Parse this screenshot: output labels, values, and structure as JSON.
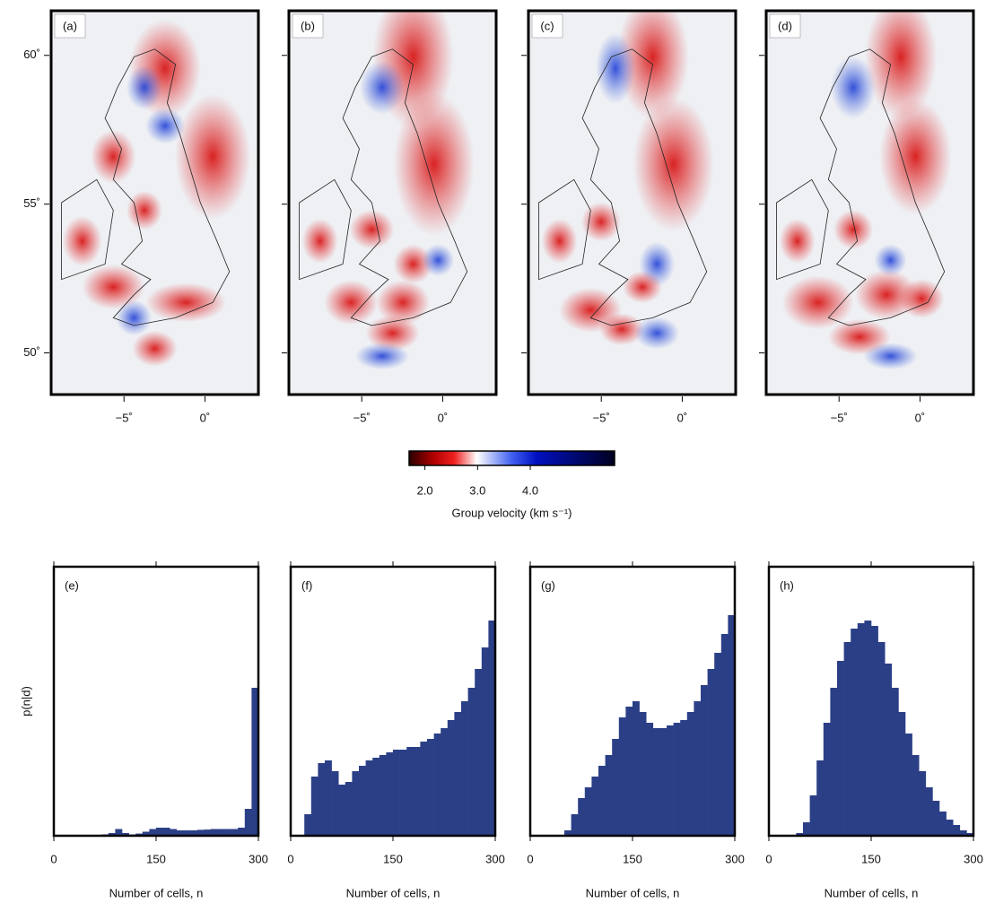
{
  "chart_data": [
    {
      "type": "map",
      "panel_label": "(a)",
      "xlim": [
        -9.5,
        3.3
      ],
      "ylim": [
        48.6,
        61.5
      ],
      "xticks": [
        {
          "value": -5,
          "label": "−5˚"
        },
        {
          "value": 0,
          "label": "0˚"
        }
      ],
      "yticks": [
        {
          "value": 50,
          "label": "50˚"
        },
        {
          "value": 55,
          "label": "55˚"
        },
        {
          "value": 60,
          "label": "60˚"
        }
      ],
      "show_ytick_labels": true
    },
    {
      "type": "map",
      "panel_label": "(b)",
      "xlim": [
        -9.5,
        3.3
      ],
      "ylim": [
        48.6,
        61.5
      ],
      "xticks": [
        {
          "value": -5,
          "label": "−5˚"
        },
        {
          "value": 0,
          "label": "0˚"
        }
      ],
      "yticks": [
        {
          "value": 50,
          "label": "50˚"
        },
        {
          "value": 55,
          "label": "55˚"
        },
        {
          "value": 60,
          "label": "60˚"
        }
      ],
      "show_ytick_labels": false
    },
    {
      "type": "map",
      "panel_label": "(c)",
      "xlim": [
        -9.5,
        3.3
      ],
      "ylim": [
        48.6,
        61.5
      ],
      "xticks": [
        {
          "value": -5,
          "label": "−5˚"
        },
        {
          "value": 0,
          "label": "0˚"
        }
      ],
      "yticks": [
        {
          "value": 50,
          "label": "50˚"
        },
        {
          "value": 55,
          "label": "55˚"
        },
        {
          "value": 60,
          "label": "60˚"
        }
      ],
      "show_ytick_labels": false
    },
    {
      "type": "map",
      "panel_label": "(d)",
      "xlim": [
        -9.5,
        3.3
      ],
      "ylim": [
        48.6,
        61.5
      ],
      "xticks": [
        {
          "value": -5,
          "label": "−5˚"
        },
        {
          "value": 0,
          "label": "0˚"
        }
      ],
      "yticks": [
        {
          "value": 50,
          "label": "50˚"
        },
        {
          "value": 55,
          "label": "55˚"
        },
        {
          "value": 60,
          "label": "60˚"
        }
      ],
      "show_ytick_labels": false
    },
    {
      "type": "colorbar",
      "label": "Group velocity (km s⁻¹)",
      "lim": [
        1.7,
        5.6
      ],
      "ticks": [
        {
          "value": 2,
          "label": "2.0"
        },
        {
          "value": 3,
          "label": "3.0"
        },
        {
          "value": 4,
          "label": "4.0"
        }
      ]
    },
    {
      "type": "histogram",
      "panel_label": "(e)",
      "ylabel": "p(n|d)",
      "xlabel": "Number of cells, n",
      "color": "#2b3f87",
      "xlim": [
        0,
        300
      ],
      "xticks": [
        0,
        150,
        300
      ],
      "ylim": [
        0,
        100
      ],
      "bins": [
        0,
        10,
        20,
        30,
        40,
        50,
        60,
        70,
        80,
        90,
        100,
        110,
        120,
        130,
        140,
        150,
        160,
        170,
        180,
        190,
        200,
        210,
        220,
        230,
        240,
        250,
        260,
        270,
        280,
        290,
        300
      ],
      "values": [
        0,
        0,
        0,
        0,
        0,
        0,
        0,
        0.5,
        1,
        2.5,
        1,
        0.5,
        0.8,
        1.5,
        2.5,
        3,
        3,
        2.5,
        2,
        2,
        2,
        2.2,
        2.3,
        2.5,
        2.5,
        2.5,
        2.5,
        3,
        10,
        55
      ]
    },
    {
      "type": "histogram",
      "panel_label": "(f)",
      "xlabel": "Number of cells, n",
      "color": "#2b3f87",
      "xlim": [
        0,
        300
      ],
      "xticks": [
        0,
        150,
        300
      ],
      "ylim": [
        0,
        100
      ],
      "bins": [
        0,
        10,
        20,
        30,
        40,
        50,
        60,
        70,
        80,
        90,
        100,
        110,
        120,
        130,
        140,
        150,
        160,
        170,
        180,
        190,
        200,
        210,
        220,
        230,
        240,
        250,
        260,
        270,
        280,
        290,
        300
      ],
      "values": [
        0,
        0,
        8,
        22,
        27,
        28,
        24,
        19,
        20,
        24,
        26,
        28,
        29,
        30,
        31,
        32,
        32,
        33,
        33,
        35,
        36,
        38,
        40,
        43,
        46,
        50,
        55,
        62,
        70,
        80
      ]
    },
    {
      "type": "histogram",
      "panel_label": "(g)",
      "xlabel": "Number of cells, n",
      "color": "#2b3f87",
      "xlim": [
        0,
        300
      ],
      "xticks": [
        0,
        150,
        300
      ],
      "ylim": [
        0,
        100
      ],
      "bins": [
        0,
        10,
        20,
        30,
        40,
        50,
        60,
        70,
        80,
        90,
        100,
        110,
        120,
        130,
        140,
        150,
        160,
        170,
        180,
        190,
        200,
        210,
        220,
        230,
        240,
        250,
        260,
        270,
        280,
        290,
        300
      ],
      "values": [
        0,
        0,
        0,
        0,
        0,
        2,
        8,
        14,
        18,
        22,
        26,
        30,
        36,
        44,
        48,
        50,
        46,
        42,
        40,
        40,
        41,
        42,
        43,
        46,
        50,
        56,
        62,
        68,
        75,
        82
      ]
    },
    {
      "type": "histogram",
      "panel_label": "(h)",
      "xlabel": "Number of cells, n",
      "color": "#2b3f87",
      "xlim": [
        0,
        300
      ],
      "xticks": [
        0,
        150,
        300
      ],
      "ylim": [
        0,
        100
      ],
      "bins": [
        0,
        10,
        20,
        30,
        40,
        50,
        60,
        70,
        80,
        90,
        100,
        110,
        120,
        130,
        140,
        150,
        160,
        170,
        180,
        190,
        200,
        210,
        220,
        230,
        240,
        250,
        260,
        270,
        280,
        290,
        300
      ],
      "values": [
        0,
        0,
        0,
        0,
        1,
        5,
        15,
        28,
        42,
        55,
        65,
        72,
        77,
        79,
        80,
        78,
        72,
        64,
        55,
        46,
        38,
        30,
        24,
        18,
        13,
        9,
        6,
        4,
        2,
        1
      ]
    }
  ]
}
